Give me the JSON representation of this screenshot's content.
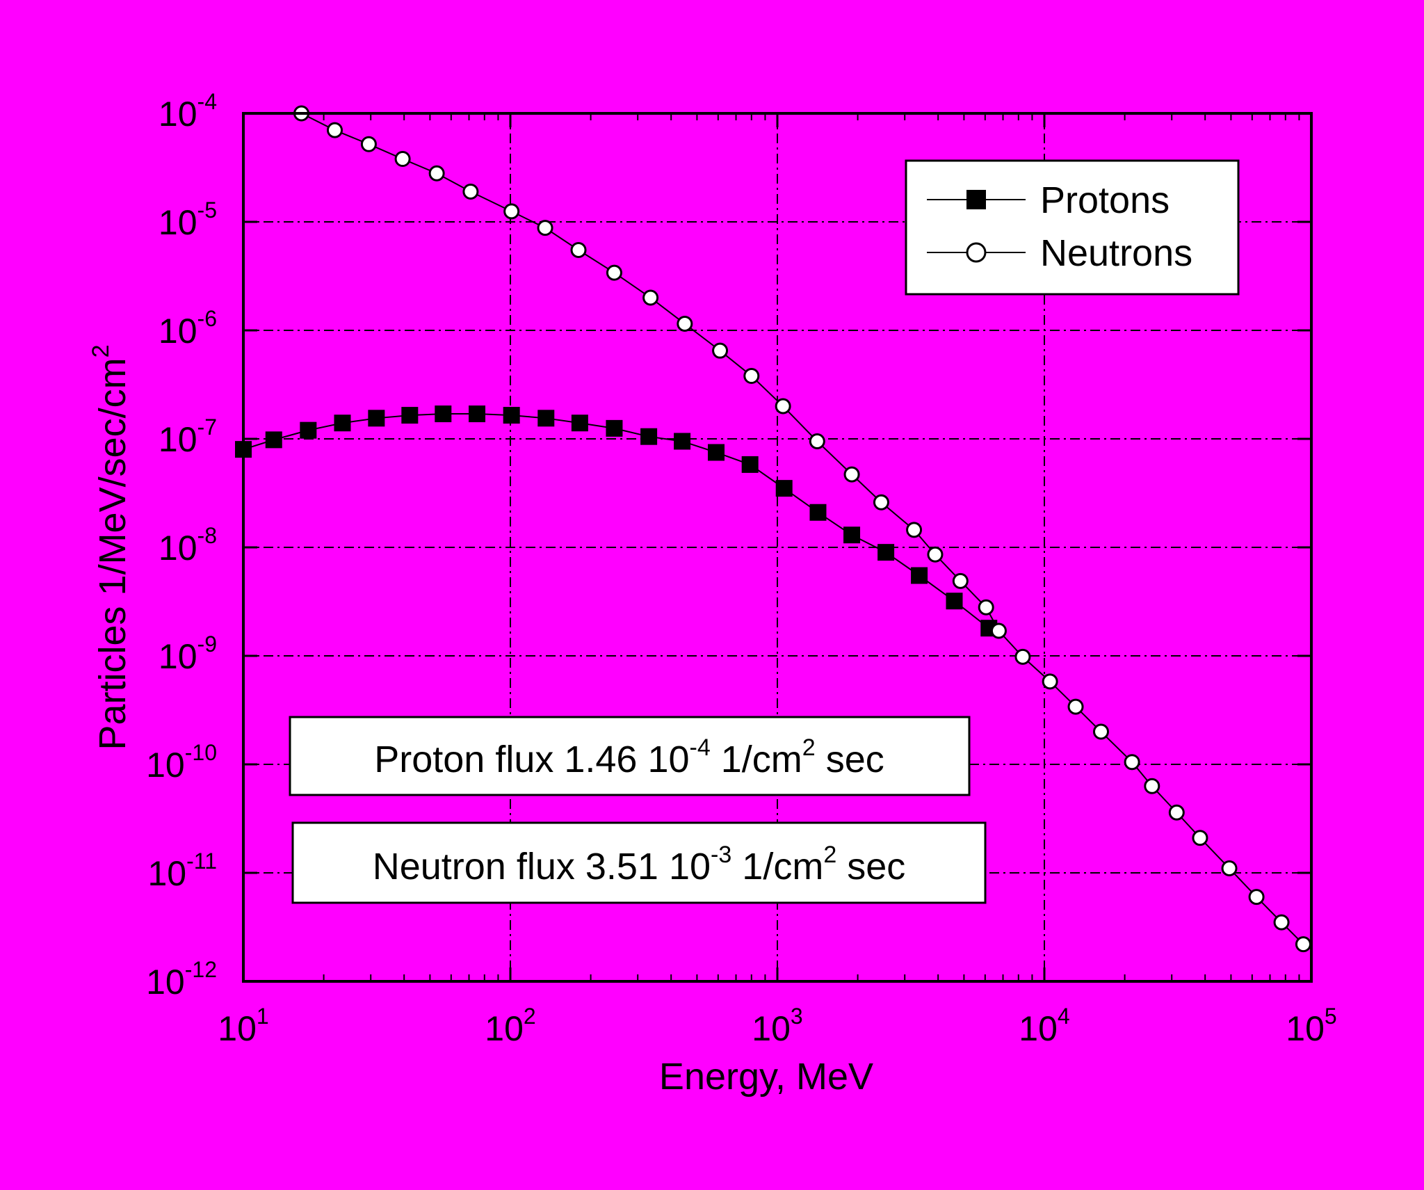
{
  "chart_data": {
    "type": "line",
    "xlabel": "Energy, MeV",
    "ylabel": "Particles 1/MeV/sec/cm",
    "ylabel_sup": "2",
    "x_scale": "log",
    "y_scale": "log",
    "xlim": [
      10,
      100000
    ],
    "ylim": [
      1e-12,
      0.0001
    ],
    "x_ticks": [
      {
        "base": "10",
        "exp": "1"
      },
      {
        "base": "10",
        "exp": "2"
      },
      {
        "base": "10",
        "exp": "3"
      },
      {
        "base": "10",
        "exp": "4"
      },
      {
        "base": "10",
        "exp": "5"
      }
    ],
    "y_ticks": [
      {
        "base": "10",
        "exp": "-4"
      },
      {
        "base": "10",
        "exp": "-5"
      },
      {
        "base": "10",
        "exp": "-6"
      },
      {
        "base": "10",
        "exp": "-7"
      },
      {
        "base": "10",
        "exp": "-8"
      },
      {
        "base": "10",
        "exp": "-9"
      },
      {
        "base": "10",
        "exp": "-10"
      },
      {
        "base": "10",
        "exp": "-11"
      },
      {
        "base": "10",
        "exp": "-12"
      }
    ],
    "grid": true,
    "legend_position": "top-right",
    "series": [
      {
        "name": "Protons",
        "marker": "filled-square",
        "x": [
          10,
          13,
          17.5,
          23.5,
          31.5,
          42,
          56,
          75,
          101,
          136,
          182,
          245,
          330,
          440,
          590,
          790,
          1060,
          1420,
          1900,
          2550,
          3400,
          4600,
          6200
        ],
        "y": [
          8e-08,
          9.8e-08,
          1.2e-07,
          1.4e-07,
          1.55e-07,
          1.65e-07,
          1.7e-07,
          1.7e-07,
          1.65e-07,
          1.55e-07,
          1.4e-07,
          1.25e-07,
          1.05e-07,
          9.5e-08,
          7.5e-08,
          5.8e-08,
          3.5e-08,
          2.1e-08,
          1.3e-08,
          9e-09,
          5.5e-09,
          3.2e-09,
          1.8e-09
        ]
      },
      {
        "name": "Neutrons",
        "marker": "open-circle",
        "x": [
          16.5,
          22,
          29.5,
          39.5,
          53,
          71,
          101,
          135,
          180,
          245,
          335,
          450,
          610,
          800,
          1050,
          1410,
          1900,
          2450,
          3250,
          3900,
          4850,
          6050,
          6750,
          8300,
          10500,
          13100,
          16300,
          21300,
          25300,
          31300,
          38300,
          49300,
          62300,
          77300,
          93300
        ],
        "y": [
          0.0001,
          7e-05,
          5.2e-05,
          3.8e-05,
          2.8e-05,
          1.9e-05,
          1.25e-05,
          8.8e-06,
          5.5e-06,
          3.4e-06,
          2e-06,
          1.15e-06,
          6.5e-07,
          3.8e-07,
          2e-07,
          9.5e-08,
          4.7e-08,
          2.6e-08,
          1.45e-08,
          8.6e-09,
          4.9e-09,
          2.8e-09,
          1.7e-09,
          9.8e-10,
          5.8e-10,
          3.4e-10,
          2e-10,
          1.05e-10,
          6.3e-11,
          3.6e-11,
          2.1e-11,
          1.1e-11,
          6e-12,
          3.5e-12,
          2.2e-12
        ]
      }
    ],
    "annotations": [
      {
        "pre": "Proton flux 1.46 10",
        "exp": "-4",
        "mid": " 1/cm",
        "sup": "2",
        "post": " sec"
      },
      {
        "pre": "Neutron flux 3.51 10",
        "exp": "-3",
        "mid": " 1/cm",
        "sup": "2",
        "post": " sec"
      }
    ]
  }
}
